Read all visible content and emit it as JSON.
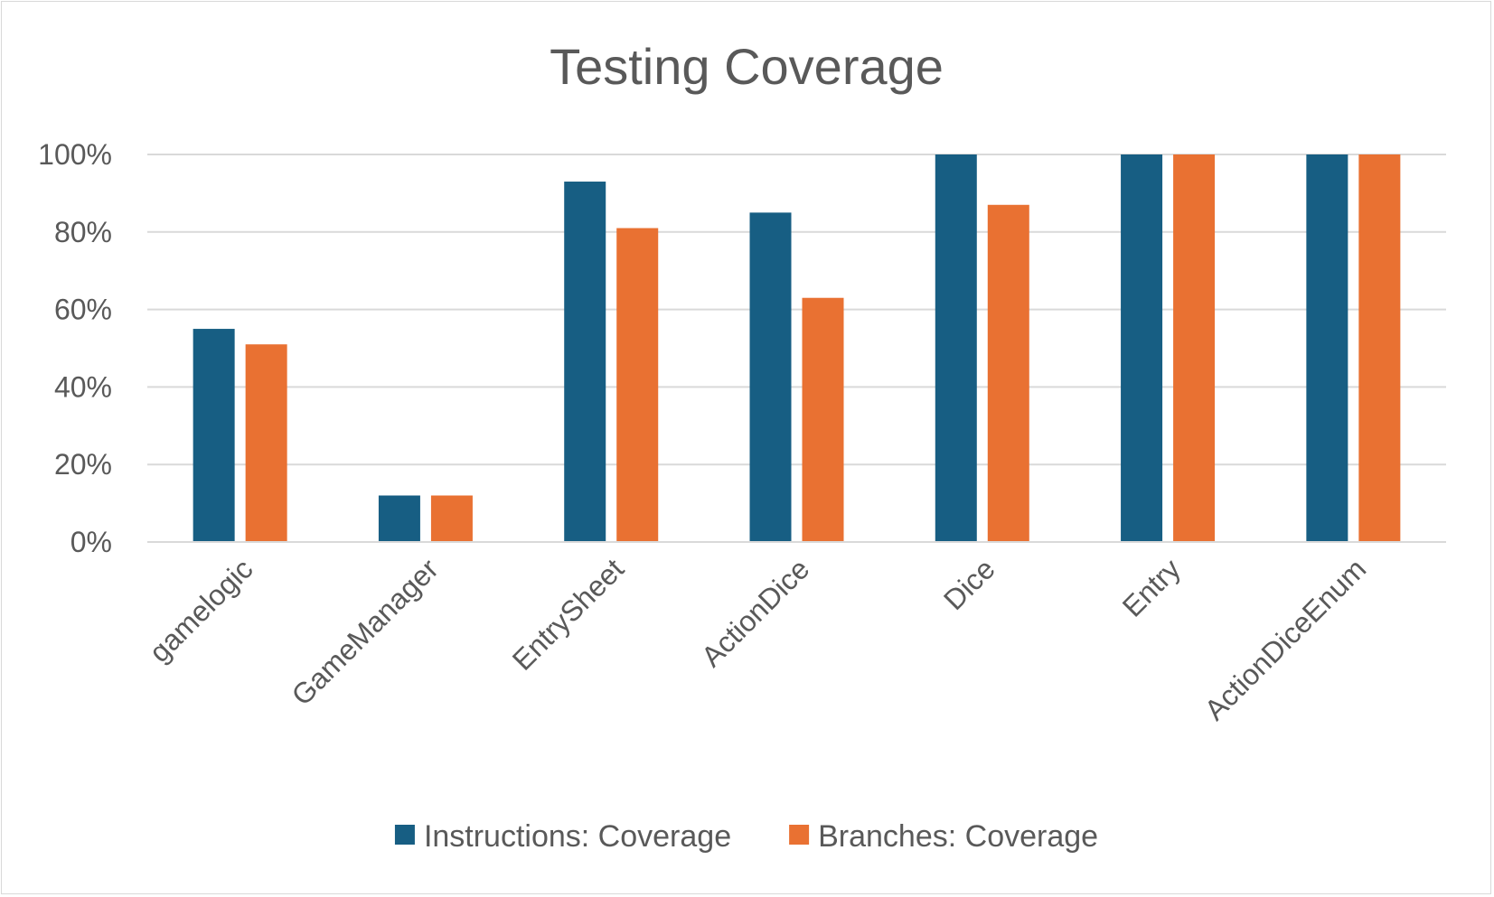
{
  "chart_data": {
    "type": "bar",
    "title": "Testing Coverage",
    "xlabel": "",
    "ylabel": "",
    "categories": [
      "gamelogic",
      "GameManager",
      "EntrySheet",
      "ActionDice",
      "Dice",
      "Entry",
      "ActionDiceEnum"
    ],
    "series": [
      {
        "name": "Instructions: Coverage",
        "color": "#175e83",
        "values": [
          0.55,
          0.12,
          0.93,
          0.85,
          1.0,
          1.0,
          1.0
        ]
      },
      {
        "name": "Branches: Coverage",
        "color": "#e97132",
        "values": [
          0.51,
          0.12,
          0.81,
          0.63,
          0.87,
          1.0,
          1.0
        ]
      }
    ],
    "ylim": [
      0,
      1
    ],
    "yticks": [
      {
        "value": 0,
        "label": "0%"
      },
      {
        "value": 0.2,
        "label": "20%"
      },
      {
        "value": 0.4,
        "label": "40%"
      },
      {
        "value": 0.6,
        "label": "60%"
      },
      {
        "value": 0.8,
        "label": "80%"
      },
      {
        "value": 1.0,
        "label": "100%"
      }
    ],
    "grid": true,
    "legend_position": "bottom",
    "gridline_color": "#d9d9d9"
  }
}
